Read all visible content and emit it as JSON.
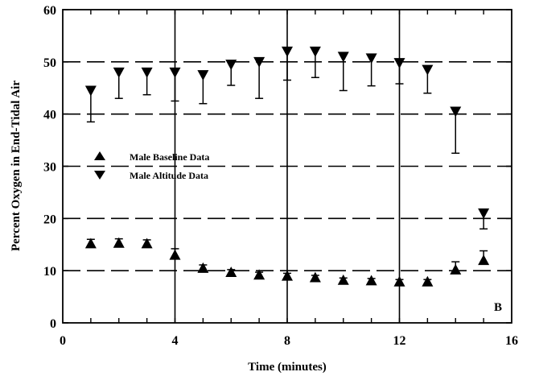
{
  "chart_data": {
    "type": "scatter",
    "title": "",
    "xlabel": "Time (minutes)",
    "ylabel": "Percent Oxygen in End-Tidal Air",
    "xlim": [
      0,
      16
    ],
    "ylim": [
      0,
      60
    ],
    "xticks": [
      0,
      4,
      8,
      12,
      16
    ],
    "yticks": [
      0,
      10,
      20,
      30,
      40,
      50,
      60
    ],
    "x_tick_labels": [
      "0",
      "4",
      "8",
      "12",
      "16"
    ],
    "y_tick_labels": [
      "0",
      "10",
      "20",
      "30",
      "40",
      "50",
      "60"
    ],
    "horizontal_dashed_lines": [
      10,
      20,
      30,
      40,
      50
    ],
    "vertical_solid_lines": [
      4,
      8,
      12
    ],
    "panel_label": "B",
    "legend_position": "center-left",
    "error_bars": "one-sided (away from the other series)",
    "series": [
      {
        "name": "Male Baseline Data",
        "marker": "triangle-up",
        "color": "#000000",
        "x": [
          1,
          2,
          3,
          4,
          5,
          6,
          7,
          8,
          9,
          10,
          11,
          12,
          13,
          14,
          15
        ],
        "y": [
          15.2,
          15.3,
          15.2,
          13,
          10.5,
          9.7,
          9.2,
          9,
          8.7,
          8.2,
          8.1,
          7.9,
          7.9,
          10.2,
          12
        ],
        "err": [
          0.8,
          0.8,
          0.7,
          1.2,
          0.6,
          0.5,
          0.5,
          0.5,
          0.4,
          0.4,
          0.4,
          0.4,
          0.4,
          1.5,
          1.8
        ]
      },
      {
        "name": "Male Altitude Data",
        "marker": "triangle-down",
        "color": "#000000",
        "x": [
          1,
          2,
          3,
          4,
          5,
          6,
          7,
          8,
          9,
          10,
          11,
          12,
          13,
          14,
          15
        ],
        "y": [
          44.5,
          48,
          48,
          48,
          47.5,
          49.5,
          50,
          52,
          52,
          51,
          50.7,
          49.8,
          48.5,
          40.5,
          21
        ],
        "err": [
          6,
          5,
          4.3,
          5.5,
          5.5,
          4,
          7,
          5.5,
          5,
          6.5,
          5.3,
          4,
          4.5,
          8,
          3
        ]
      }
    ]
  }
}
